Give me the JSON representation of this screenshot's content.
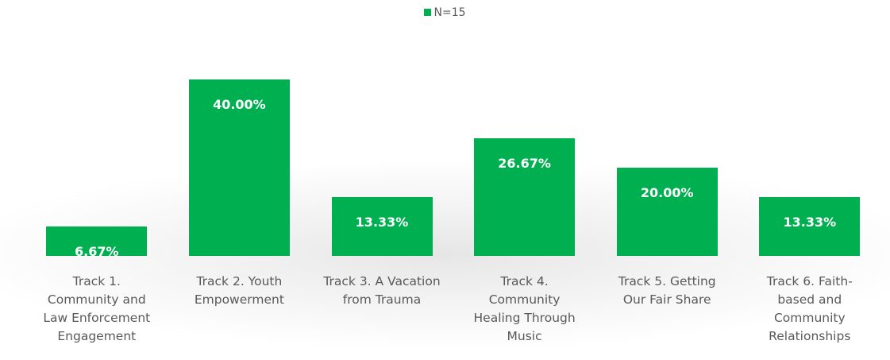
{
  "chart_data": {
    "type": "bar",
    "categories": [
      "Track 1. Community and Law Enforcement Engagement",
      "Track 2. Youth Empowerment",
      "Track 3. A Vacation from Trauma",
      "Track 4. Community Healing Through Music",
      "Track 5. Getting Our Fair Share",
      "Track 6. Faith-based and Community Relationships"
    ],
    "series": [
      {
        "name": "N=15",
        "color": "#00b050",
        "values": [
          6.67,
          40.0,
          13.33,
          26.67,
          20.0,
          13.33
        ],
        "value_labels": [
          "6.67%",
          "40.00%",
          "13.33%",
          "26.67%",
          "20.00%",
          "13.33%"
        ]
      }
    ],
    "legend": "top"
  }
}
